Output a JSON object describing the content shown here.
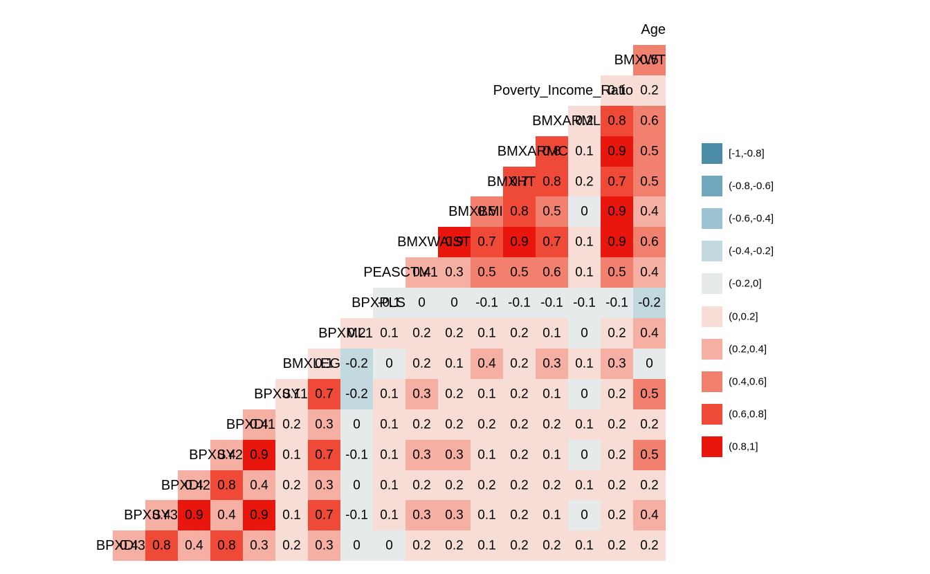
{
  "chart_data": {
    "type": "heatmap",
    "title": "",
    "description": "Lower-triangle binned correlation heatmap of NHANES-style body measure and blood pressure variables",
    "variables_top_to_bottom": [
      "Age",
      "BMXWT",
      "Poverty_Income_Ratio",
      "BMXARML",
      "BMXARMC",
      "BMXHT",
      "BMXBMI",
      "BMXWAIST",
      "PEASCTM1",
      "BPXPLS",
      "BPXML1",
      "BMXLEG",
      "BPXSY1",
      "BPXDI1",
      "BPXSY2",
      "BPXDI2",
      "BPXSY3",
      "BPXDI3"
    ],
    "columns_left_to_right_bottom_row": [
      "BPXSY3",
      "BPXDI2",
      "BPXSY2",
      "BPXDI1",
      "BPXSY1",
      "BMXLEG",
      "BPXML1",
      "BPXPLS",
      "PEASCTM1",
      "BMXWAIST",
      "BMXBMI",
      "BMXHT",
      "BMXARMC",
      "BMXARML",
      "Poverty_Income_Ratio",
      "BMXWT",
      "Age"
    ],
    "layout": {
      "triangle": "rows right-aligned, apex at top right under Age",
      "grid": "off",
      "legend_position": "right"
    },
    "rows": [
      {
        "label": "Age",
        "values": []
      },
      {
        "label": "BMXWT",
        "values": [
          0.5
        ]
      },
      {
        "label": "Poverty_Income_Ratio",
        "values": [
          0.1,
          0.2
        ]
      },
      {
        "label": "BMXARML",
        "values": [
          0.2,
          0.8,
          0.6
        ]
      },
      {
        "label": "BMXARMC",
        "values": [
          0.8,
          0.1,
          0.9,
          0.5
        ]
      },
      {
        "label": "BMXHT",
        "values": [
          0.7,
          0.8,
          0.2,
          0.7,
          0.5
        ]
      },
      {
        "label": "BMXBMI",
        "values": [
          0.5,
          0.8,
          0.5,
          0,
          0.9,
          0.4
        ]
      },
      {
        "label": "BMXWAIST",
        "values": [
          0.9,
          0.7,
          0.9,
          0.7,
          0.1,
          0.9,
          0.6
        ]
      },
      {
        "label": "PEASCTM1",
        "values": [
          0.4,
          0.3,
          0.5,
          0.5,
          0.6,
          0.1,
          0.5,
          0.4
        ]
      },
      {
        "label": "BPXPLS",
        "values": [
          -0.1,
          0,
          0,
          -0.1,
          -0.1,
          -0.1,
          -0.1,
          -0.1,
          -0.2
        ]
      },
      {
        "label": "BPXML1",
        "values": [
          0.2,
          0.1,
          0.2,
          0.2,
          0.1,
          0.2,
          0.1,
          0,
          0.2,
          0.4
        ]
      },
      {
        "label": "BMXLEG",
        "values": [
          0.1,
          -0.2,
          0,
          0.2,
          0.1,
          0.4,
          0.2,
          0.3,
          0.1,
          0.3,
          0
        ]
      },
      {
        "label": "BPXSY1",
        "values": [
          0.1,
          0.7,
          -0.2,
          0.1,
          0.3,
          0.2,
          0.1,
          0.2,
          0.1,
          0,
          0.2,
          0.5
        ]
      },
      {
        "label": "BPXDI1",
        "values": [
          0.4,
          0.2,
          0.3,
          0,
          0.1,
          0.2,
          0.2,
          0.2,
          0.2,
          0.2,
          0.1,
          0.2,
          0.2
        ]
      },
      {
        "label": "BPXSY2",
        "values": [
          0.4,
          0.9,
          0.1,
          0.7,
          -0.1,
          0.1,
          0.3,
          0.3,
          0.1,
          0.2,
          0.1,
          0,
          0.2,
          0.5
        ]
      },
      {
        "label": "BPXDI2",
        "values": [
          0.4,
          0.8,
          0.4,
          0.2,
          0.3,
          0,
          0.1,
          0.2,
          0.2,
          0.2,
          0.2,
          0.2,
          0.1,
          0.2,
          0.2
        ]
      },
      {
        "label": "BPXSY3",
        "values": [
          0.4,
          0.9,
          0.4,
          0.9,
          0.1,
          0.7,
          -0.1,
          0.1,
          0.3,
          0.3,
          0.1,
          0.2,
          0.1,
          0,
          0.2,
          0.4
        ]
      },
      {
        "label": "BPXDI3",
        "values": [
          0.4,
          0.8,
          0.4,
          0.8,
          0.3,
          0.2,
          0.3,
          0,
          0,
          0.2,
          0.2,
          0.1,
          0.2,
          0.2,
          0.1,
          0.2,
          0.2
        ]
      }
    ],
    "legend": {
      "bins": [
        {
          "label": "[-1,-0.8]",
          "color": "#4b8ca6"
        },
        {
          "label": "(-0.8,-0.6]",
          "color": "#72a8bd"
        },
        {
          "label": "(-0.6,-0.4]",
          "color": "#9cc3d1"
        },
        {
          "label": "(-0.4,-0.2]",
          "color": "#c3d9e0"
        },
        {
          "label": "(-0.2,0]",
          "color": "#e7eaeb"
        },
        {
          "label": "(0,0.2]",
          "color": "#f8ddd6"
        },
        {
          "label": "(0.2,0.4]",
          "color": "#f5b0a3"
        },
        {
          "label": "(0.4,0.6]",
          "color": "#f2806e"
        },
        {
          "label": "(0.6,0.8]",
          "color": "#ef4937"
        },
        {
          "label": "(0.8,1]",
          "color": "#e8160c"
        }
      ],
      "bin_thresholds": [
        -0.8,
        -0.6,
        -0.4,
        -0.2,
        0,
        0.2,
        0.4,
        0.6,
        0.8,
        1
      ]
    }
  }
}
